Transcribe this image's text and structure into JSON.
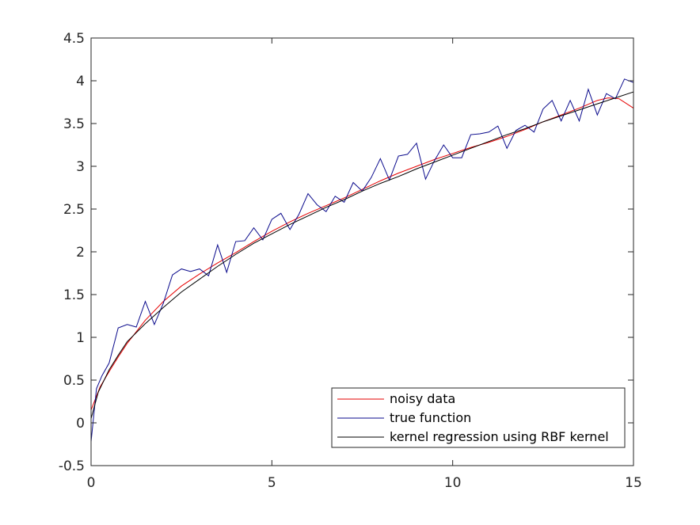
{
  "chart_data": {
    "type": "line",
    "xlim": [
      0,
      15
    ],
    "ylim": [
      -0.5,
      4.5
    ],
    "xticks": [
      0,
      5,
      10,
      15
    ],
    "yticks": [
      -0.5,
      0,
      0.5,
      1,
      1.5,
      2,
      2.5,
      3,
      3.5,
      4,
      4.5
    ],
    "grid": false,
    "legend_position": "bottom-right",
    "series": [
      {
        "name": "noisy data",
        "color": "#e60000",
        "x": [
          0,
          0.25,
          0.5,
          0.75,
          1,
          1.5,
          2,
          2.5,
          3,
          3.5,
          4,
          4.5,
          5,
          5.5,
          6,
          6.5,
          7,
          7.5,
          8,
          8.5,
          9,
          9.5,
          10,
          10.5,
          11,
          11.5,
          12,
          12.5,
          13,
          13.5,
          14,
          14.3,
          14.6,
          15
        ],
        "y": [
          0.15,
          0.42,
          0.6,
          0.77,
          0.93,
          1.2,
          1.42,
          1.6,
          1.74,
          1.87,
          1.99,
          2.12,
          2.24,
          2.35,
          2.45,
          2.54,
          2.63,
          2.73,
          2.83,
          2.92,
          3.0,
          3.08,
          3.15,
          3.22,
          3.28,
          3.35,
          3.43,
          3.52,
          3.6,
          3.68,
          3.77,
          3.8,
          3.79,
          3.68
        ]
      },
      {
        "name": "true function",
        "color": "#0a0a8c",
        "x": [
          0,
          0.15,
          0.3,
          0.5,
          0.75,
          1,
          1.25,
          1.5,
          1.75,
          2,
          2.25,
          2.5,
          2.75,
          3,
          3.25,
          3.5,
          3.75,
          4,
          4.25,
          4.5,
          4.75,
          5,
          5.25,
          5.5,
          5.75,
          6,
          6.25,
          6.5,
          6.75,
          7,
          7.25,
          7.5,
          7.75,
          8,
          8.25,
          8.5,
          8.75,
          9,
          9.25,
          9.5,
          9.75,
          10,
          10.25,
          10.5,
          10.75,
          11,
          11.25,
          11.5,
          11.75,
          12,
          12.25,
          12.5,
          12.75,
          13,
          13.25,
          13.5,
          13.75,
          14,
          14.25,
          14.5,
          14.75,
          15
        ],
        "y": [
          -0.22,
          0.4,
          0.55,
          0.7,
          1.11,
          1.15,
          1.12,
          1.42,
          1.15,
          1.4,
          1.73,
          1.8,
          1.77,
          1.8,
          1.72,
          2.08,
          1.76,
          2.12,
          2.13,
          2.28,
          2.14,
          2.38,
          2.45,
          2.26,
          2.44,
          2.68,
          2.55,
          2.47,
          2.65,
          2.58,
          2.81,
          2.71,
          2.87,
          3.09,
          2.84,
          3.12,
          3.14,
          3.27,
          2.85,
          3.07,
          3.25,
          3.1,
          3.1,
          3.37,
          3.38,
          3.4,
          3.47,
          3.21,
          3.42,
          3.48,
          3.4,
          3.67,
          3.77,
          3.53,
          3.77,
          3.53,
          3.9,
          3.6,
          3.85,
          3.79,
          4.02,
          3.98
        ]
      },
      {
        "name": "kernel regression using RBF kernel",
        "color": "#000000",
        "x": [
          0,
          0.2,
          0.5,
          0.75,
          1,
          1.5,
          2,
          2.5,
          3,
          3.5,
          4,
          4.5,
          5,
          5.5,
          6,
          6.5,
          7,
          7.5,
          8,
          8.5,
          9,
          9.5,
          10,
          10.5,
          11,
          11.5,
          12,
          12.5,
          13,
          13.5,
          14,
          14.5,
          15
        ],
        "y": [
          0.05,
          0.36,
          0.62,
          0.79,
          0.95,
          1.16,
          1.35,
          1.53,
          1.68,
          1.83,
          1.97,
          2.1,
          2.21,
          2.32,
          2.42,
          2.52,
          2.61,
          2.71,
          2.8,
          2.88,
          2.97,
          3.05,
          3.13,
          3.21,
          3.29,
          3.37,
          3.44,
          3.52,
          3.59,
          3.66,
          3.73,
          3.8,
          3.87
        ]
      }
    ]
  }
}
